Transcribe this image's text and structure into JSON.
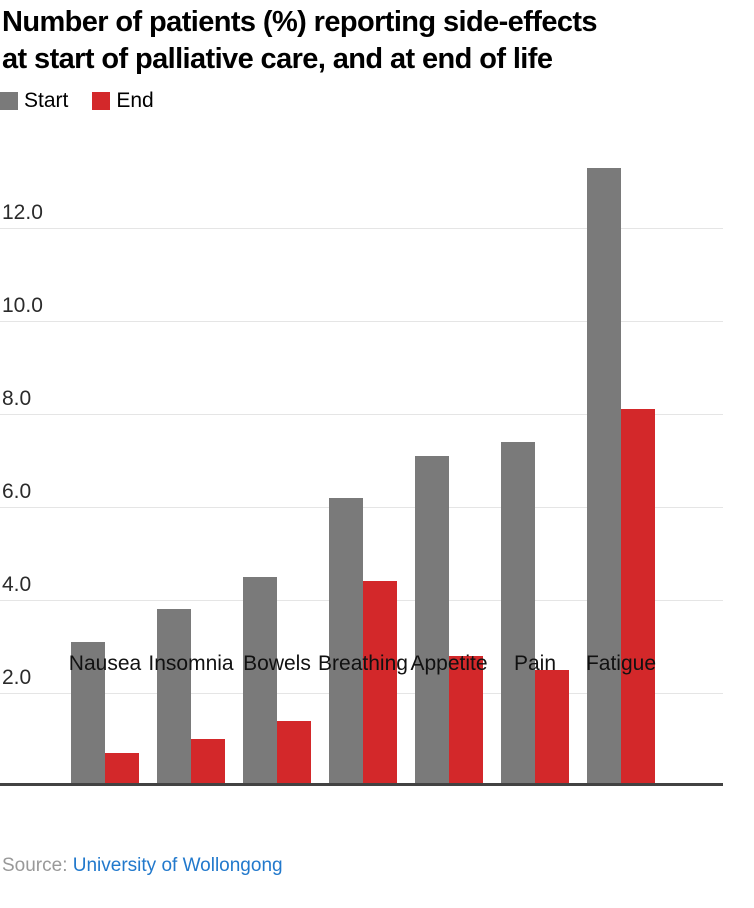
{
  "title": {
    "line1": "Number of patients (%) reporting side-effects",
    "line2": "at start of palliative care, and at end of life"
  },
  "source": {
    "label": "Source:",
    "link_text": "University of Wollongong"
  },
  "colors": {
    "start_bar": "#7a7a7a",
    "end_bar": "#d3282a",
    "link": "#2279cc",
    "source_label": "#999999",
    "gridline": "#e5e5e5",
    "axis": "#424242",
    "tick_text": "#2b2b2b",
    "title_text": "#000000"
  },
  "chart_data": {
    "type": "bar",
    "title": "Number of patients (%) reporting side-effects at start of palliative care, and at end of life",
    "categories": [
      "Nausea",
      "Insomnia",
      "Bowels",
      "Breathing",
      "Appetite",
      "Pain",
      "Fatigue"
    ],
    "series": [
      {
        "name": "Start",
        "color": "#7a7a7a",
        "values": [
          3.1,
          3.8,
          4.5,
          6.2,
          7.1,
          7.4,
          13.3
        ]
      },
      {
        "name": "End",
        "color": "#d3282a",
        "values": [
          0.7,
          1.0,
          1.4,
          4.4,
          2.8,
          2.5,
          8.1
        ]
      }
    ],
    "yticks": [
      "2.0",
      "4.0",
      "6.0",
      "8.0",
      "10.0",
      "12.0"
    ],
    "ylim": [
      0,
      13.9
    ],
    "grid": "horizontal",
    "legend_position": "top-left",
    "xlabel": "",
    "ylabel": ""
  }
}
